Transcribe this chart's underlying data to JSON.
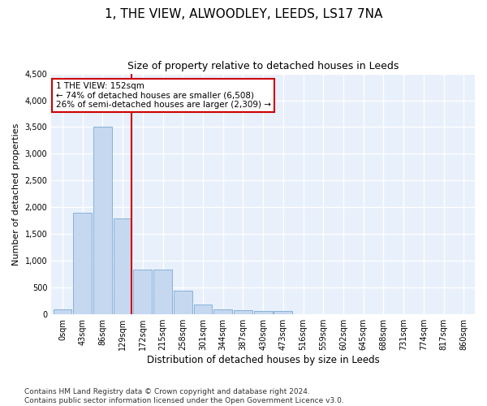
{
  "title": "1, THE VIEW, ALWOODLEY, LEEDS, LS17 7NA",
  "subtitle": "Size of property relative to detached houses in Leeds",
  "xlabel": "Distribution of detached houses by size in Leeds",
  "ylabel": "Number of detached properties",
  "bin_labels": [
    "0sqm",
    "43sqm",
    "86sqm",
    "129sqm",
    "172sqm",
    "215sqm",
    "258sqm",
    "301sqm",
    "344sqm",
    "387sqm",
    "430sqm",
    "473sqm",
    "516sqm",
    "559sqm",
    "602sqm",
    "645sqm",
    "688sqm",
    "731sqm",
    "774sqm",
    "817sqm",
    "860sqm"
  ],
  "bar_values": [
    100,
    1900,
    3500,
    1800,
    830,
    830,
    450,
    180,
    100,
    80,
    60,
    60,
    0,
    0,
    0,
    0,
    0,
    0,
    0,
    0
  ],
  "bar_color": "#c5d8f0",
  "bar_edge_color": "#7aaad4",
  "vline_color": "#cc0000",
  "vline_x_idx": 3,
  "annotation_text": "1 THE VIEW: 152sqm\n← 74% of detached houses are smaller (6,508)\n26% of semi-detached houses are larger (2,309) →",
  "annotation_box_color": "#ffffff",
  "annotation_box_edge": "#cc0000",
  "ylim": [
    0,
    4500
  ],
  "yticks": [
    0,
    500,
    1000,
    1500,
    2000,
    2500,
    3000,
    3500,
    4000,
    4500
  ],
  "background_color": "#e8f0fb",
  "grid_color": "#ffffff",
  "footer": "Contains HM Land Registry data © Crown copyright and database right 2024.\nContains public sector information licensed under the Open Government Licence v3.0.",
  "title_fontsize": 11,
  "subtitle_fontsize": 9,
  "xlabel_fontsize": 8.5,
  "ylabel_fontsize": 8,
  "tick_fontsize": 7,
  "annotation_fontsize": 7.5,
  "footer_fontsize": 6.5
}
